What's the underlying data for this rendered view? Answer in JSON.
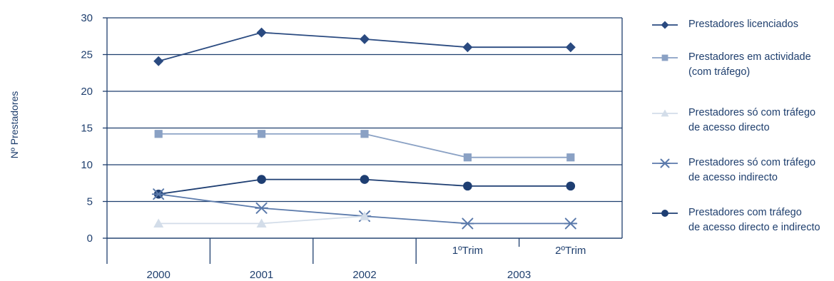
{
  "chart_data": {
    "type": "line",
    "ylabel": "Nº Prestadores",
    "ylim": [
      0,
      30
    ],
    "yticks": [
      0,
      5,
      10,
      15,
      20,
      25,
      30
    ],
    "grid": true,
    "legend_position": "right",
    "categories": [
      "2000",
      "2001",
      "2002",
      "1ºTrim",
      "2ºTrim"
    ],
    "year_groups": [
      {
        "label": "2000",
        "span": 1
      },
      {
        "label": "2001",
        "span": 1
      },
      {
        "label": "2002",
        "span": 1
      },
      {
        "label": "2003",
        "span": 2
      }
    ],
    "series": [
      {
        "name": "Prestadores licenciados",
        "name_lines": [
          "Prestadores licenciados"
        ],
        "marker": "diamond",
        "color": "#2a4a80",
        "values": [
          24.1,
          28,
          27.1,
          26,
          26
        ]
      },
      {
        "name": "Prestadores em actividade (com tráfego)",
        "name_lines": [
          "Prestadores em actividade",
          "(com tráfego)"
        ],
        "marker": "square",
        "color": "#8aa1c4",
        "values": [
          14.2,
          14.2,
          14.2,
          11,
          11
        ]
      },
      {
        "name": "Prestadores só com tráfego de acesso directo",
        "name_lines": [
          "Prestadores só com tráfego",
          "de acesso directo"
        ],
        "marker": "triangle",
        "color": "#d3dde9",
        "values": [
          2,
          2,
          3,
          null,
          null
        ]
      },
      {
        "name": "Prestadores só com tráfego de acesso indirecto",
        "name_lines": [
          "Prestadores só com tráfego",
          "de acesso indirecto"
        ],
        "marker": "asterisk",
        "color": "#5b7aab",
        "values": [
          6,
          4.1,
          3,
          2,
          2
        ]
      },
      {
        "name": "Prestadores com tráfego de acesso directo e indirecto",
        "name_lines": [
          "Prestadores com tráfego",
          "de acesso directo e indirecto"
        ],
        "marker": "circle",
        "color": "#1e3e72",
        "values": [
          6,
          8,
          8,
          7.1,
          7.1
        ]
      }
    ]
  }
}
